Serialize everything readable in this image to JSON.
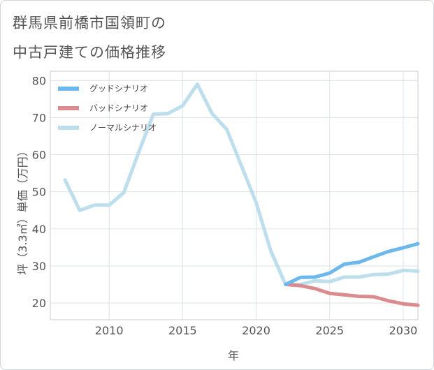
{
  "title": {
    "line1": "群馬県前橋市国領町の",
    "line2": "中古戸建ての価格推移"
  },
  "chart_data": {
    "type": "line",
    "xlabel": "年",
    "ylabel": "坪（3.3㎡）単価（万円）",
    "xlim": [
      2006,
      2031
    ],
    "ylim": [
      15.5,
      82.5
    ],
    "xticks": [
      2010,
      2015,
      2020,
      2025,
      2030
    ],
    "yticks": [
      20,
      30,
      40,
      50,
      60,
      70,
      80
    ],
    "grid": true,
    "legend_position": "top-left",
    "series": [
      {
        "name": "グッドシナリオ",
        "color": "#6cb8ec",
        "x": [
          2022,
          2023,
          2024,
          2025,
          2026,
          2027,
          2028,
          2029,
          2030,
          2031
        ],
        "y": [
          25.0,
          26.9,
          27.0,
          28.1,
          30.5,
          31.0,
          32.5,
          33.9,
          34.9,
          36.0
        ]
      },
      {
        "name": "バッドシナリオ",
        "color": "#db8a8e",
        "x": [
          2022,
          2023,
          2024,
          2025,
          2026,
          2027,
          2028,
          2029,
          2030,
          2031
        ],
        "y": [
          25.0,
          24.7,
          23.9,
          22.6,
          22.2,
          21.8,
          21.7,
          20.6,
          19.8,
          19.4
        ]
      },
      {
        "name": "ノーマルシナリオ",
        "color": "#bddeec",
        "x": [
          2007,
          2008,
          2009,
          2010,
          2011,
          2012,
          2013,
          2014,
          2015,
          2016,
          2017,
          2018,
          2019,
          2020,
          2021,
          2022,
          2023,
          2024,
          2025,
          2026,
          2027,
          2028,
          2029,
          2030,
          2031
        ],
        "y": [
          53.2,
          45.0,
          46.4,
          46.4,
          49.8,
          60.5,
          70.9,
          71.1,
          73.2,
          79.0,
          71.1,
          66.8,
          57.0,
          47.0,
          34.0,
          25.0,
          25.0,
          26.0,
          25.8,
          27.0,
          27.0,
          27.7,
          27.8,
          28.8,
          28.6
        ]
      }
    ]
  }
}
